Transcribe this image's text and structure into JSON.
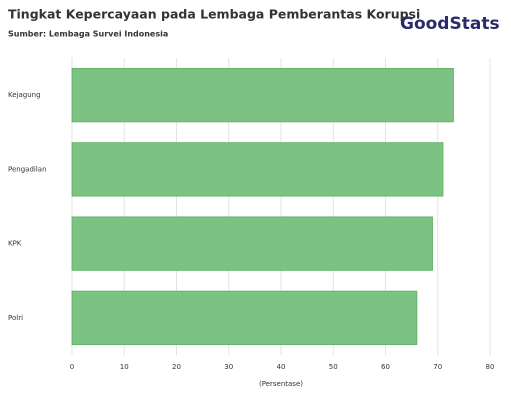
{
  "chart_data": {
    "type": "hbar",
    "title": "Tingkat Kepercayaan pada Lembaga Pemberantas Korupsi",
    "subtitle": "Sumber: Lembaga Survei Indonesia",
    "logo": "GoodStats",
    "x_label": "(Persentase)",
    "categories": [
      "Kejagung",
      "Pengadilan",
      "KPK",
      "Polri"
    ],
    "values": [
      73,
      71,
      69,
      66
    ],
    "color": "#7cc283",
    "xlim": [
      0,
      80
    ],
    "xticks": [
      0,
      10,
      20,
      30,
      40,
      50,
      60,
      70,
      80
    ],
    "grid": true
  }
}
